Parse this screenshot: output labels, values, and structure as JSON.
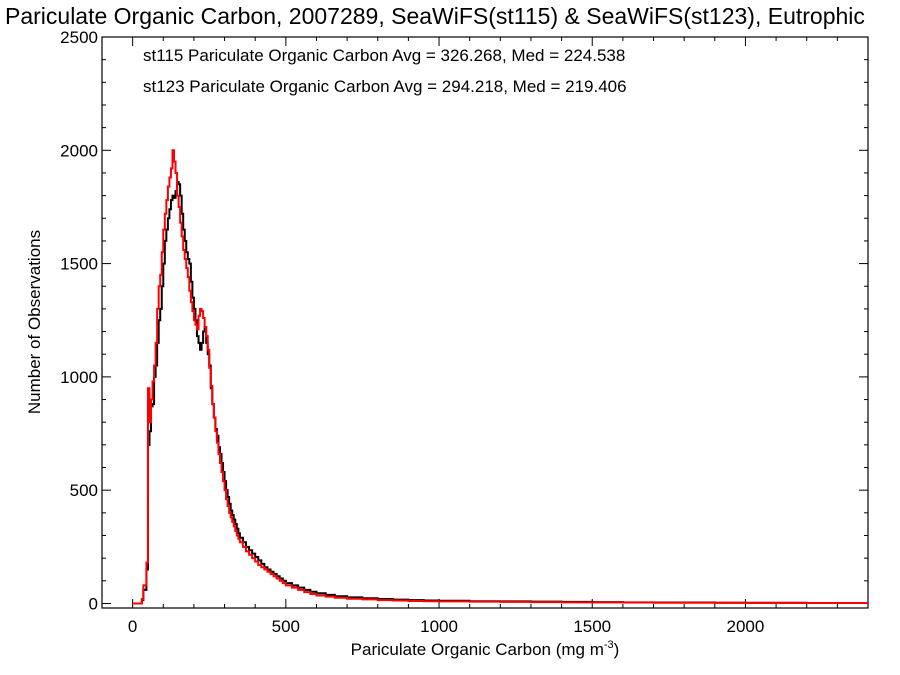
{
  "chart_data": {
    "type": "line",
    "title": "Pariculate Organic Carbon, 2007289, SeaWiFS(st115) & SeaWiFS(st123), Eutrophic",
    "xlabel_main": "Pariculate Organic Carbon (mg m",
    "xlabel_sup": "-3",
    "xlabel_close": ")",
    "ylabel": "Number of Observations",
    "xlim": [
      -100,
      2400
    ],
    "ylim": [
      -20,
      2500
    ],
    "x_ticks": [
      0,
      500,
      1000,
      1500,
      2000
    ],
    "y_ticks": [
      0,
      500,
      1000,
      1500,
      2000,
      2500
    ],
    "x_tick_labels": [
      "0",
      "500",
      "1000",
      "1500",
      "2000"
    ],
    "y_tick_labels": [
      "0",
      "500",
      "1000",
      "1500",
      "2000",
      "2500"
    ],
    "legend": [
      {
        "text": "st115 Pariculate Organic Carbon Avg = 326.268, Med = 224.538",
        "color": "#000000"
      },
      {
        "text": "st123 Pariculate Organic Carbon Avg = 294.218, Med = 219.406",
        "color": "#ff0000"
      }
    ],
    "series": [
      {
        "color": "#000000",
        "x": [
          0,
          25,
          30,
          35,
          45,
          50,
          55,
          60,
          65,
          70,
          75,
          80,
          85,
          90,
          95,
          100,
          105,
          110,
          115,
          120,
          125,
          130,
          135,
          140,
          145,
          150,
          155,
          160,
          165,
          170,
          175,
          180,
          185,
          190,
          195,
          200,
          205,
          210,
          215,
          220,
          225,
          230,
          235,
          240,
          245,
          250,
          255,
          260,
          265,
          270,
          275,
          280,
          285,
          290,
          295,
          300,
          305,
          310,
          315,
          320,
          325,
          330,
          335,
          340,
          345,
          350,
          360,
          370,
          380,
          390,
          400,
          410,
          420,
          430,
          440,
          450,
          460,
          470,
          480,
          490,
          500,
          520,
          540,
          560,
          580,
          600,
          630,
          660,
          700,
          750,
          800,
          850,
          900,
          950,
          1000,
          1100,
          1200,
          1300,
          1400,
          1500,
          1600,
          1700,
          1800,
          1900,
          2000,
          2100,
          2200,
          2300,
          2400
        ],
        "y": [
          0,
          0,
          15,
          60,
          150,
          700,
          760,
          870,
          880,
          1000,
          1050,
          1150,
          1250,
          1300,
          1400,
          1500,
          1600,
          1650,
          1700,
          1740,
          1780,
          1800,
          1790,
          1820,
          1860,
          1850,
          1800,
          1720,
          1650,
          1600,
          1550,
          1520,
          1500,
          1420,
          1350,
          1300,
          1250,
          1180,
          1150,
          1120,
          1150,
          1200,
          1220,
          1150,
          1100,
          1050,
          950,
          880,
          820,
          770,
          740,
          690,
          660,
          620,
          580,
          540,
          500,
          470,
          440,
          410,
          390,
          370,
          350,
          330,
          310,
          290,
          270,
          250,
          235,
          220,
          205,
          190,
          175,
          160,
          150,
          140,
          130,
          120,
          110,
          100,
          90,
          80,
          70,
          60,
          52,
          45,
          38,
          32,
          27,
          23,
          20,
          17,
          15,
          13,
          12,
          10,
          9,
          8,
          7,
          6,
          5,
          4,
          4,
          3,
          3,
          3,
          2,
          2,
          2
        ]
      },
      {
        "color": "#ff0000",
        "x": [
          0,
          25,
          30,
          35,
          45,
          50,
          55,
          60,
          65,
          70,
          75,
          80,
          85,
          90,
          95,
          100,
          105,
          110,
          115,
          120,
          125,
          130,
          135,
          140,
          145,
          150,
          155,
          160,
          165,
          170,
          175,
          180,
          185,
          190,
          195,
          200,
          205,
          210,
          215,
          220,
          225,
          230,
          235,
          240,
          245,
          250,
          255,
          260,
          265,
          270,
          275,
          280,
          285,
          290,
          295,
          300,
          305,
          310,
          315,
          320,
          325,
          330,
          335,
          340,
          345,
          350,
          360,
          370,
          380,
          390,
          400,
          410,
          420,
          430,
          440,
          450,
          460,
          470,
          480,
          490,
          500,
          520,
          540,
          560,
          580,
          600,
          630,
          660,
          700,
          750,
          800,
          850,
          900,
          950,
          1000,
          1100,
          1200,
          1300,
          1400,
          1500,
          1600,
          1700,
          1800,
          1900,
          2000,
          2100,
          2200,
          2300,
          2400
        ],
        "y": [
          0,
          0,
          20,
          80,
          180,
          950,
          800,
          900,
          980,
          1050,
          1150,
          1300,
          1400,
          1450,
          1550,
          1650,
          1720,
          1780,
          1840,
          1880,
          1920,
          2000,
          1950,
          1900,
          1800,
          1750,
          1680,
          1620,
          1560,
          1520,
          1480,
          1440,
          1380,
          1330,
          1290,
          1250,
          1230,
          1210,
          1270,
          1300,
          1290,
          1260,
          1220,
          1180,
          1120,
          1040,
          960,
          880,
          820,
          760,
          710,
          660,
          620,
          580,
          540,
          500,
          460,
          430,
          400,
          380,
          360,
          340,
          320,
          300,
          285,
          270,
          250,
          230,
          215,
          200,
          185,
          170,
          160,
          150,
          140,
          130,
          120,
          110,
          100,
          90,
          80,
          70,
          60,
          50,
          42,
          35,
          30,
          25,
          21,
          18,
          15,
          13,
          11,
          10,
          9,
          8,
          7,
          6,
          5,
          5,
          4,
          3,
          3,
          3,
          2,
          2,
          2,
          2,
          2
        ]
      }
    ]
  }
}
